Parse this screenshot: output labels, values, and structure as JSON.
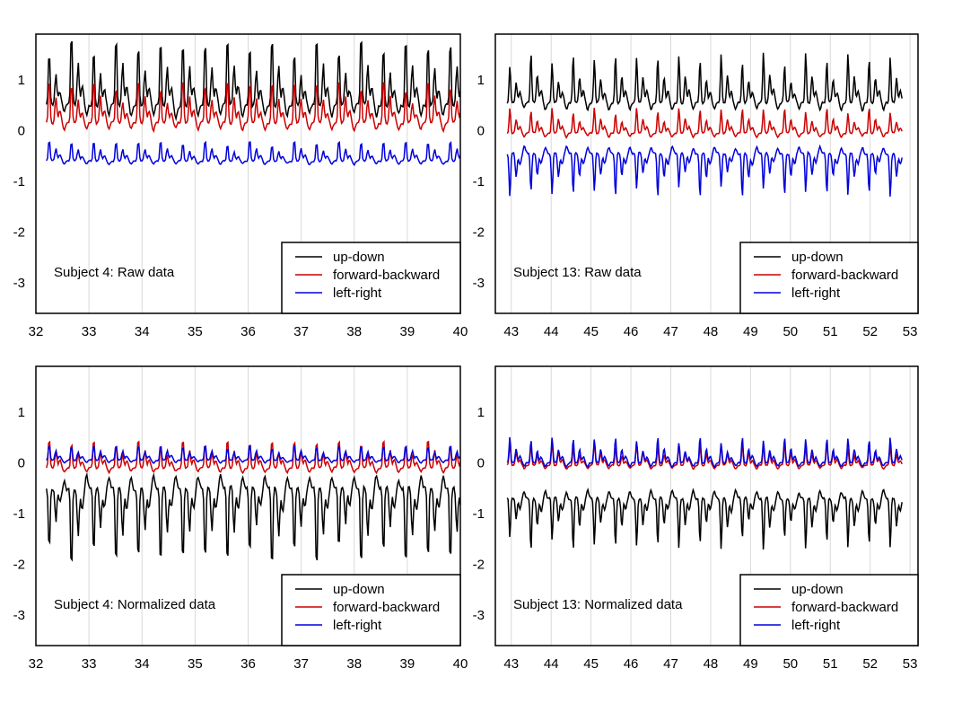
{
  "chart_data": [
    {
      "type": "line",
      "annotation": "Subject 4: Raw data",
      "xlim": [
        32,
        40
      ],
      "ylim": [
        -3.6,
        1.9
      ],
      "xticks": [
        32,
        33,
        34,
        35,
        36,
        37,
        38,
        39,
        40
      ],
      "yticks": [
        1,
        0,
        -1,
        -2,
        -3
      ],
      "grid": "vertical",
      "legend_position": "bottom-right",
      "series": [
        {
          "name": "up-down",
          "color": "#000000",
          "x_range": [
            32.2,
            40.0
          ],
          "period": 0.42,
          "base": 0.5,
          "amp": 1.3
        },
        {
          "name": "forward-backward",
          "color": "#cc0000",
          "x_range": [
            32.2,
            40.0
          ],
          "period": 0.42,
          "base": 0.15,
          "amp": 0.85
        },
        {
          "name": "left-right",
          "color": "#0000dd",
          "x_range": [
            32.2,
            40.0
          ],
          "period": 0.42,
          "base": -0.6,
          "amp": 0.4
        }
      ]
    },
    {
      "type": "line",
      "annotation": "Subject 13: Raw data",
      "xlim": [
        42.6,
        53.2
      ],
      "ylim": [
        -3.6,
        1.9
      ],
      "xticks": [
        43,
        44,
        45,
        46,
        47,
        48,
        49,
        50,
        51,
        52,
        53
      ],
      "yticks": [
        1,
        0,
        -1,
        -2,
        -3
      ],
      "grid": "vertical",
      "legend_position": "bottom-right",
      "series": [
        {
          "name": "up-down",
          "color": "#000000",
          "x_range": [
            42.9,
            52.8
          ],
          "period": 0.53,
          "base": 0.55,
          "amp": 0.85
        },
        {
          "name": "forward-backward",
          "color": "#cc0000",
          "x_range": [
            42.9,
            52.8
          ],
          "period": 0.53,
          "base": -0.05,
          "amp": 0.45
        },
        {
          "name": "left-right",
          "color": "#0000dd",
          "x_range": [
            42.9,
            52.8
          ],
          "period": 0.53,
          "base": -0.45,
          "amp": -0.75
        }
      ]
    },
    {
      "type": "line",
      "annotation": "Subject 4: Normalized data",
      "xlim": [
        32,
        40
      ],
      "ylim": [
        -3.6,
        1.9
      ],
      "xticks": [
        32,
        33,
        34,
        35,
        36,
        37,
        38,
        39,
        40
      ],
      "yticks": [
        1,
        0,
        -1,
        -2,
        -3
      ],
      "grid": "vertical",
      "legend_position": "bottom-right",
      "series": [
        {
          "name": "up-down",
          "color": "#000000",
          "x_range": [
            32.2,
            40.0
          ],
          "period": 0.42,
          "base": -0.5,
          "amp": -1.5
        },
        {
          "name": "forward-backward",
          "color": "#cc0000",
          "x_range": [
            32.2,
            40.0
          ],
          "period": 0.42,
          "base": -0.1,
          "amp": 0.55
        },
        {
          "name": "left-right",
          "color": "#0000dd",
          "x_range": [
            32.2,
            40.0
          ],
          "period": 0.42,
          "base": 0.05,
          "amp": 0.3
        }
      ]
    },
    {
      "type": "line",
      "annotation": "Subject 13: Normalized data",
      "xlim": [
        42.6,
        53.2
      ],
      "ylim": [
        -3.6,
        1.9
      ],
      "xticks": [
        43,
        44,
        45,
        46,
        47,
        48,
        49,
        50,
        51,
        52,
        53
      ],
      "yticks": [
        1,
        0,
        -1,
        -2,
        -3
      ],
      "grid": "vertical",
      "legend_position": "bottom-right",
      "series": [
        {
          "name": "up-down",
          "color": "#000000",
          "x_range": [
            42.9,
            52.8
          ],
          "period": 0.53,
          "base": -0.7,
          "amp": -0.9
        },
        {
          "name": "forward-backward",
          "color": "#cc0000",
          "x_range": [
            42.9,
            52.8
          ],
          "period": 0.53,
          "base": -0.05,
          "amp": 0.4
        },
        {
          "name": "left-right",
          "color": "#0000dd",
          "x_range": [
            42.9,
            52.8
          ],
          "period": 0.53,
          "base": 0.0,
          "amp": 0.45
        }
      ]
    }
  ]
}
